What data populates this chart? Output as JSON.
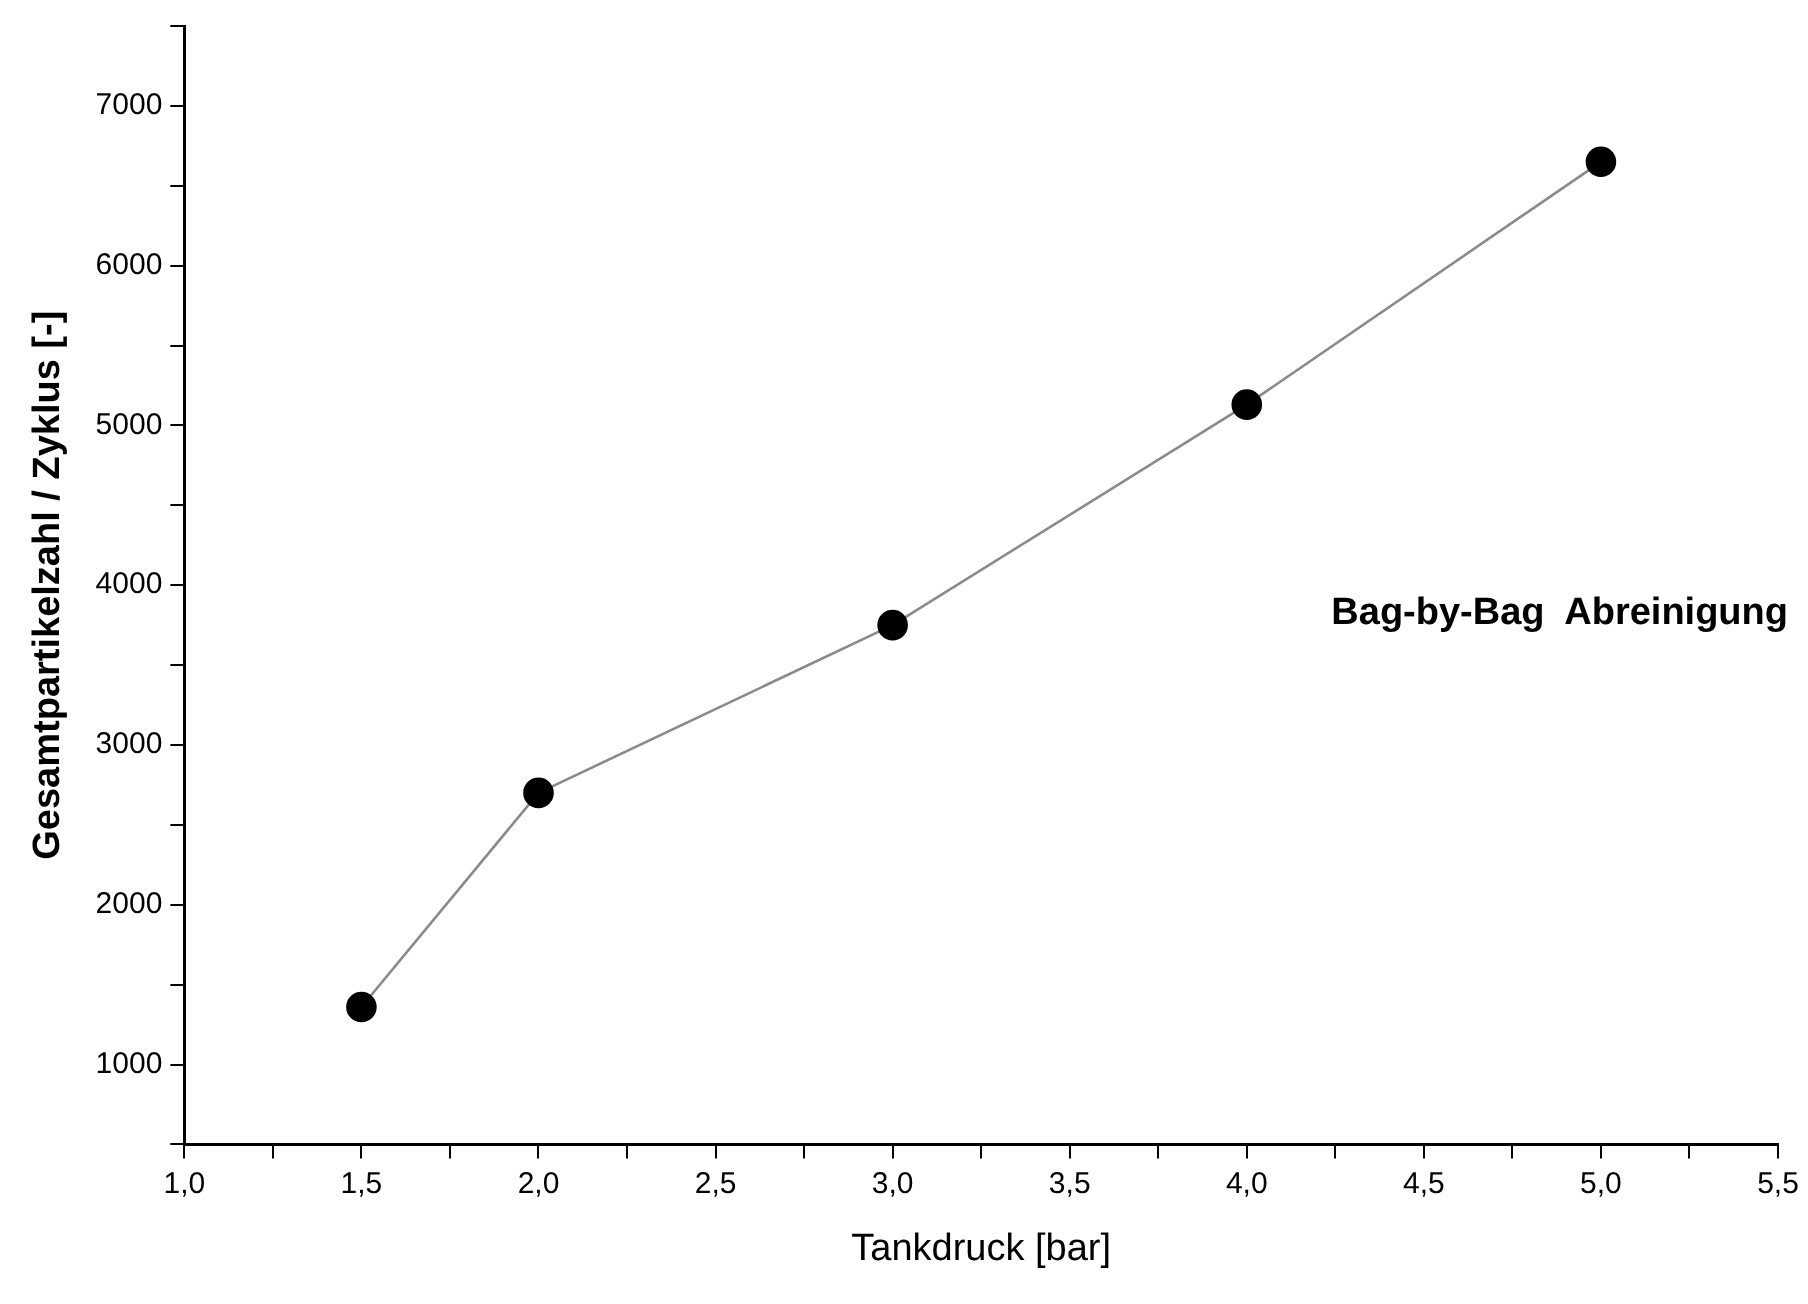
{
  "chart_data": {
    "type": "line",
    "xlabel": "Tankdruck [bar]",
    "ylabel": "Gesamtpartikelzahl / Zyklus [-]",
    "x": [
      1.5,
      2.0,
      3.0,
      4.0,
      5.0
    ],
    "series": [
      {
        "color": "#000000",
        "values": [
          1360,
          2700,
          3750,
          5130,
          6650
        ]
      }
    ],
    "marker": "circle",
    "line_style": "solid",
    "grid": false,
    "legend": false,
    "xlim": [
      1.0,
      5.5
    ],
    "xticks": [
      {
        "value": 1.0,
        "label": "1,0"
      },
      {
        "value": 1.25,
        "label": null
      },
      {
        "value": 1.5,
        "label": "1,5"
      },
      {
        "value": 1.75,
        "label": null
      },
      {
        "value": 2.0,
        "label": "2,0"
      },
      {
        "value": 2.25,
        "label": null
      },
      {
        "value": 2.5,
        "label": "2,5"
      },
      {
        "value": 2.75,
        "label": null
      },
      {
        "value": 3.0,
        "label": "3,0"
      },
      {
        "value": 3.25,
        "label": null
      },
      {
        "value": 3.5,
        "label": "3,5"
      },
      {
        "value": 3.75,
        "label": null
      },
      {
        "value": 4.0,
        "label": "4,0"
      },
      {
        "value": 4.25,
        "label": null
      },
      {
        "value": 4.5,
        "label": "4,5"
      },
      {
        "value": 4.75,
        "label": null
      },
      {
        "value": 5.0,
        "label": "5,0"
      },
      {
        "value": 5.25,
        "label": null
      },
      {
        "value": 5.5,
        "label": "5,5"
      }
    ],
    "ylim": [
      500,
      7500
    ],
    "yticks": [
      {
        "value": 500,
        "label": null
      },
      1000,
      {
        "value": 1500,
        "label": null
      },
      2000,
      {
        "value": 2500,
        "label": null
      },
      3000,
      {
        "value": 3500,
        "label": null
      },
      4000,
      {
        "value": 4500,
        "label": null
      },
      5000,
      {
        "value": 5500,
        "label": null
      },
      6000,
      {
        "value": 6500,
        "label": null
      },
      7000,
      {
        "value": 7500,
        "label": null
      }
    ],
    "annotations": [
      "Bag-by-Bag  Abreinigung"
    ]
  }
}
